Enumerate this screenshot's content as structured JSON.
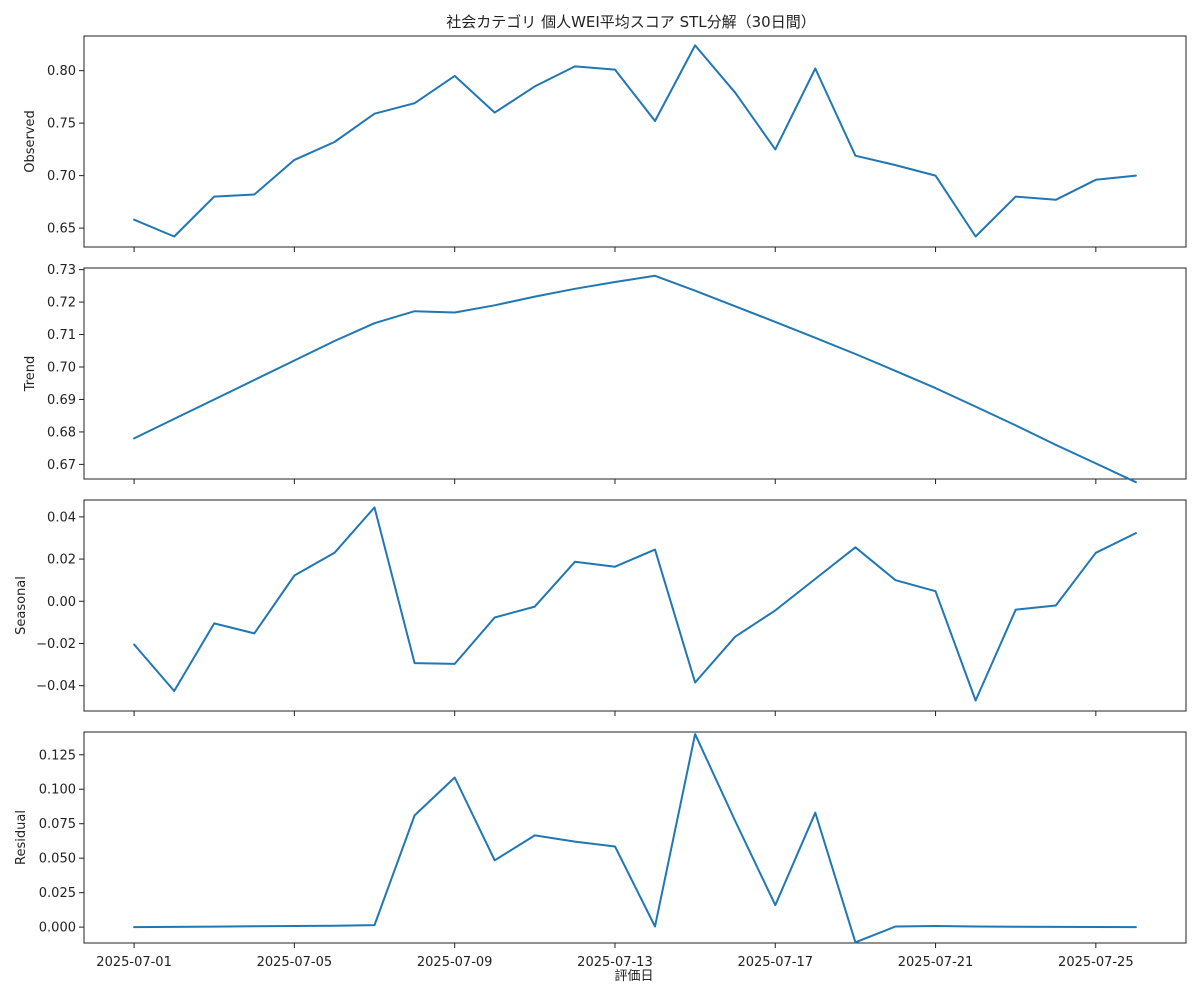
{
  "figure": {
    "title": "社会カテゴリ 個人WEI平均スコア STL分解（30日間）",
    "xlabel": "評価日",
    "line_color": "#1f77b4"
  },
  "chart_data": {
    "type": "line",
    "x": [
      "2025-07-01",
      "2025-07-02",
      "2025-07-03",
      "2025-07-04",
      "2025-07-05",
      "2025-07-06",
      "2025-07-07",
      "2025-07-08",
      "2025-07-09",
      "2025-07-10",
      "2025-07-11",
      "2025-07-12",
      "2025-07-13",
      "2025-07-14",
      "2025-07-15",
      "2025-07-16",
      "2025-07-17",
      "2025-07-18",
      "2025-07-19",
      "2025-07-20",
      "2025-07-21",
      "2025-07-22",
      "2025-07-23",
      "2025-07-24",
      "2025-07-25",
      "2025-07-26"
    ],
    "x_ticks": [
      "2025-07-01",
      "2025-07-05",
      "2025-07-09",
      "2025-07-13",
      "2025-07-17",
      "2025-07-21",
      "2025-07-25"
    ],
    "panels": [
      {
        "ylabel": "Observed",
        "ylim": [
          0.632,
          0.833
        ],
        "y_ticks": [
          "0.65",
          "0.70",
          "0.75",
          "0.80"
        ],
        "values": [
          0.658,
          0.642,
          0.68,
          0.682,
          0.715,
          0.732,
          0.759,
          0.769,
          0.795,
          0.76,
          0.785,
          0.804,
          0.801,
          0.752,
          0.824,
          0.779,
          0.725,
          0.802,
          0.719,
          0.71,
          0.7,
          0.642,
          0.68,
          0.677,
          0.696,
          0.7
        ]
      },
      {
        "ylabel": "Trend",
        "ylim": [
          0.6655,
          0.7305
        ],
        "y_ticks": [
          "0.67",
          "0.68",
          "0.69",
          "0.70",
          "0.71",
          "0.72",
          "0.73"
        ],
        "values": [
          0.678,
          0.684,
          0.69,
          0.696,
          0.702,
          0.708,
          0.7135,
          0.7172,
          0.7168,
          0.719,
          0.7217,
          0.7241,
          0.7262,
          0.7281,
          0.7235,
          0.7187,
          0.7139,
          0.709,
          0.704,
          0.6988,
          0.6935,
          0.6878,
          0.682,
          0.676,
          0.6703,
          0.6645
        ]
      },
      {
        "ylabel": "Seasonal",
        "ylim": [
          -0.052,
          0.048
        ],
        "y_ticks": [
          "−0.04",
          "−0.02",
          "0.00",
          "0.02",
          "0.04"
        ],
        "values": [
          -0.0205,
          -0.0425,
          -0.0105,
          -0.0152,
          0.0122,
          0.023,
          0.0445,
          -0.0293,
          -0.0297,
          -0.0077,
          -0.0025,
          0.0187,
          0.0164,
          0.0245,
          -0.0385,
          -0.0168,
          -0.0043,
          0.0106,
          0.0256,
          0.01,
          0.0048,
          -0.047,
          -0.004,
          -0.002,
          0.023,
          0.0323
        ]
      },
      {
        "ylabel": "Residual",
        "ylim": [
          -0.0115,
          0.1415
        ],
        "y_ticks": [
          "0.000",
          "0.025",
          "0.050",
          "0.075",
          "0.100",
          "0.125"
        ],
        "values": [
          0.0,
          0.0002,
          0.0004,
          0.0006,
          0.0008,
          0.001,
          0.0015,
          0.081,
          0.1085,
          0.0485,
          0.0665,
          0.062,
          0.0585,
          0.0005,
          0.14,
          0.077,
          0.016,
          0.083,
          -0.011,
          0.0005,
          0.0008,
          0.0005,
          0.0003,
          0.0002,
          0.0001,
          0.0
        ]
      }
    ]
  }
}
